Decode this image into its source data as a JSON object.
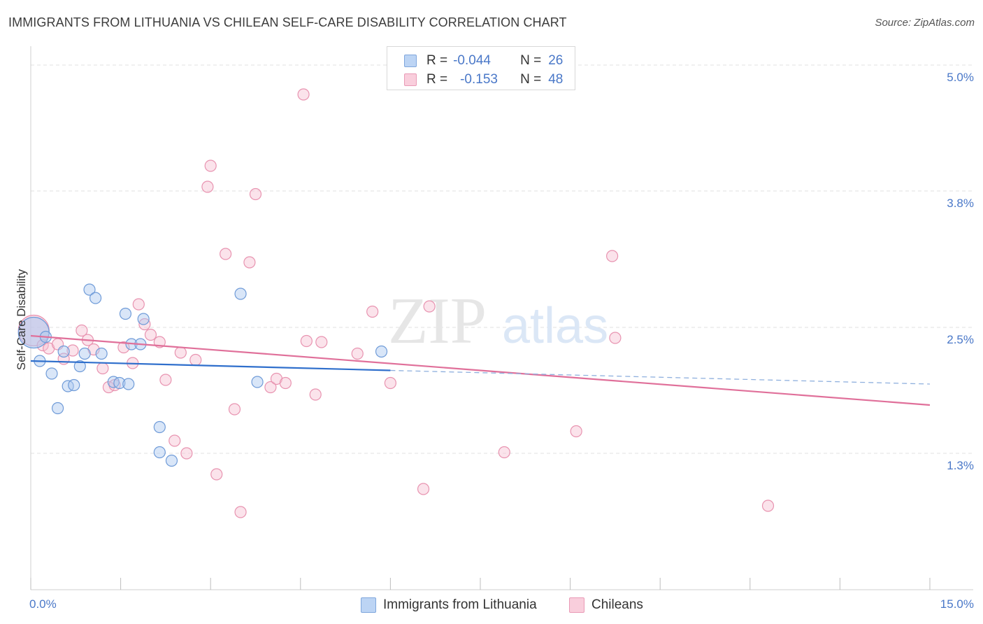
{
  "header": {
    "title": "IMMIGRANTS FROM LITHUANIA VS CHILEAN SELF-CARE DISABILITY CORRELATION CHART",
    "source": "Source: ZipAtlas.com"
  },
  "watermark": {
    "part1": "ZIP",
    "part2": "atlas"
  },
  "legend": {
    "series1": {
      "r_label": "R =",
      "r_value": "-0.044",
      "n_label": "N =",
      "n_value": "26"
    },
    "series2": {
      "r_label": "R =",
      "r_value": "-0.153",
      "n_label": "N =",
      "n_value": "48"
    }
  },
  "colors": {
    "blue_fill": "#aac8f0",
    "blue_stroke": "#6f9bd8",
    "blue_line": "#2f6fcc",
    "pink_fill": "#f7c0d2",
    "pink_stroke": "#e893b0",
    "pink_line": "#e0709a",
    "tick_label": "#4a78c8",
    "grid": "#e2e2e2"
  },
  "chart_data": {
    "type": "scatter",
    "title": "IMMIGRANTS FROM LITHUANIA VS CHILEAN SELF-CARE DISABILITY CORRELATION CHART",
    "xlabel": "",
    "ylabel": "Self-Care Disability",
    "xlim": [
      0,
      15
    ],
    "ylim": [
      0,
      5.1
    ],
    "x_tick_labels": [
      "0.0%",
      "15.0%"
    ],
    "y_ticks": [
      1.3,
      2.5,
      3.8,
      5.0
    ],
    "y_tick_labels": [
      "1.3%",
      "2.5%",
      "3.8%",
      "5.0%"
    ],
    "grid": true,
    "legend_position": "top-center",
    "series": [
      {
        "name": "Immigrants from Lithuania",
        "r": -0.044,
        "n": 26,
        "trend": {
          "x0": 0.0,
          "y0": 2.18,
          "x1": 6.0,
          "y1": 2.09,
          "dash_x1": 15.0,
          "dash_y1": 1.96
        },
        "points": [
          {
            "x": 0.05,
            "y": 2.45,
            "big": true
          },
          {
            "x": 0.15,
            "y": 2.18
          },
          {
            "x": 0.25,
            "y": 2.41
          },
          {
            "x": 0.35,
            "y": 2.06
          },
          {
            "x": 0.45,
            "y": 1.73
          },
          {
            "x": 0.55,
            "y": 2.27
          },
          {
            "x": 0.62,
            "y": 1.94
          },
          {
            "x": 0.72,
            "y": 1.95
          },
          {
            "x": 0.82,
            "y": 2.13
          },
          {
            "x": 0.9,
            "y": 2.25
          },
          {
            "x": 0.98,
            "y": 2.86
          },
          {
            "x": 1.08,
            "y": 2.78
          },
          {
            "x": 1.18,
            "y": 2.25
          },
          {
            "x": 1.38,
            "y": 1.98
          },
          {
            "x": 1.48,
            "y": 1.97
          },
          {
            "x": 1.58,
            "y": 2.63
          },
          {
            "x": 1.63,
            "y": 1.96
          },
          {
            "x": 1.68,
            "y": 2.34
          },
          {
            "x": 1.83,
            "y": 2.34
          },
          {
            "x": 1.88,
            "y": 2.58
          },
          {
            "x": 2.15,
            "y": 1.55
          },
          {
            "x": 2.15,
            "y": 1.31
          },
          {
            "x": 2.35,
            "y": 1.23
          },
          {
            "x": 3.5,
            "y": 2.82
          },
          {
            "x": 3.78,
            "y": 1.98
          },
          {
            "x": 5.85,
            "y": 2.27
          }
        ]
      },
      {
        "name": "Chileans",
        "r": -0.153,
        "n": 48,
        "trend": {
          "x0": 0.0,
          "y0": 2.42,
          "x1": 15.0,
          "y1": 1.76
        },
        "points": [
          {
            "x": 0.05,
            "y": 2.47,
            "big": true
          },
          {
            "x": 0.2,
            "y": 2.33
          },
          {
            "x": 0.3,
            "y": 2.3
          },
          {
            "x": 0.45,
            "y": 2.34
          },
          {
            "x": 0.55,
            "y": 2.2
          },
          {
            "x": 0.7,
            "y": 2.28
          },
          {
            "x": 0.85,
            "y": 2.47
          },
          {
            "x": 0.95,
            "y": 2.38
          },
          {
            "x": 1.05,
            "y": 2.29
          },
          {
            "x": 1.2,
            "y": 2.11
          },
          {
            "x": 1.3,
            "y": 1.93
          },
          {
            "x": 1.4,
            "y": 1.95
          },
          {
            "x": 1.55,
            "y": 2.31
          },
          {
            "x": 1.7,
            "y": 2.16
          },
          {
            "x": 1.8,
            "y": 2.72
          },
          {
            "x": 1.9,
            "y": 2.53
          },
          {
            "x": 2.0,
            "y": 2.43
          },
          {
            "x": 2.15,
            "y": 2.36
          },
          {
            "x": 2.25,
            "y": 2.0
          },
          {
            "x": 2.4,
            "y": 1.42
          },
          {
            "x": 2.5,
            "y": 2.26
          },
          {
            "x": 2.6,
            "y": 1.3
          },
          {
            "x": 2.75,
            "y": 2.19
          },
          {
            "x": 2.95,
            "y": 3.84
          },
          {
            "x": 3.0,
            "y": 4.04
          },
          {
            "x": 3.1,
            "y": 1.1
          },
          {
            "x": 3.25,
            "y": 3.2
          },
          {
            "x": 3.4,
            "y": 1.72
          },
          {
            "x": 3.5,
            "y": 0.74
          },
          {
            "x": 3.65,
            "y": 3.12
          },
          {
            "x": 3.75,
            "y": 3.77
          },
          {
            "x": 4.0,
            "y": 1.93
          },
          {
            "x": 4.1,
            "y": 2.01
          },
          {
            "x": 4.25,
            "y": 1.97
          },
          {
            "x": 4.55,
            "y": 4.72
          },
          {
            "x": 4.6,
            "y": 2.37
          },
          {
            "x": 4.75,
            "y": 1.86
          },
          {
            "x": 4.85,
            "y": 2.36
          },
          {
            "x": 5.45,
            "y": 2.25
          },
          {
            "x": 5.7,
            "y": 2.65
          },
          {
            "x": 6.0,
            "y": 1.97
          },
          {
            "x": 6.55,
            "y": 0.96
          },
          {
            "x": 6.65,
            "y": 2.7
          },
          {
            "x": 7.9,
            "y": 1.31
          },
          {
            "x": 9.1,
            "y": 1.51
          },
          {
            "x": 9.7,
            "y": 3.18
          },
          {
            "x": 9.75,
            "y": 2.4
          },
          {
            "x": 12.3,
            "y": 0.8
          }
        ]
      }
    ]
  }
}
